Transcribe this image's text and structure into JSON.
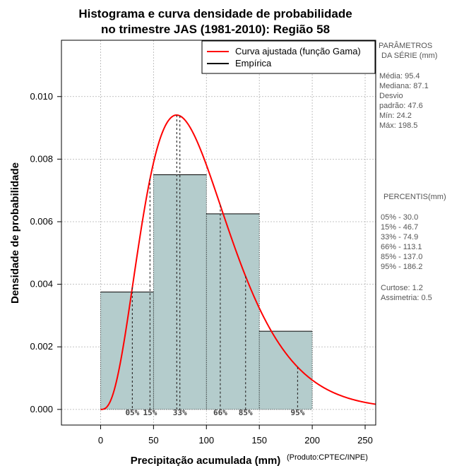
{
  "chart_data": {
    "type": "histogram",
    "title_line1": "Histograma e curva densidade de probabilidade",
    "title_line2": "no trimestre JAS (1981-2010): Região 58",
    "xlabel": "Precipitação acumulada (mm)",
    "ylabel": "Densidade de probabilidade",
    "credit": "(Produto:CPTEC/INPE)",
    "xlim": [
      -37,
      260
    ],
    "ylim": [
      -0.0005,
      0.0118
    ],
    "x_ticks": [
      0,
      50,
      100,
      150,
      200,
      250
    ],
    "y_ticks": [
      0.0,
      0.002,
      0.004,
      0.006,
      0.008,
      0.01
    ],
    "x_tick_labels": [
      "0",
      "50",
      "100",
      "150",
      "200",
      "250"
    ],
    "y_tick_labels": [
      "0.000",
      "0.002",
      "0.004",
      "0.006",
      "0.008",
      "0.010"
    ],
    "grid": true,
    "bins": [
      {
        "start": 0,
        "end": 50,
        "density": 0.00375
      },
      {
        "start": 50,
        "end": 100,
        "density": 0.0075
      },
      {
        "start": 100,
        "end": 150,
        "density": 0.00625
      },
      {
        "start": 150,
        "end": 200,
        "density": 0.0025
      }
    ],
    "gamma_fit": {
      "shape": 4.03,
      "scale": 23.7
    },
    "legend": {
      "position": "top-right",
      "entries": [
        {
          "label": "Curva ajustada (função Gama)",
          "color": "#ff0000"
        },
        {
          "label": "Empírica",
          "color": "#000000"
        }
      ]
    },
    "percentile_markers": [
      {
        "label": "05%",
        "x": 30.0
      },
      {
        "label": "15%",
        "x": 46.7
      },
      {
        "label": "33%",
        "x": 74.9
      },
      {
        "label": "66%",
        "x": 113.1
      },
      {
        "label": "85%",
        "x": 137.0
      },
      {
        "label": "95%",
        "x": 186.2
      }
    ],
    "mode_x": 72
  },
  "parameters": {
    "heading1": "PARÂMETROS",
    "heading2": "DA SÉRIE (mm)",
    "lines": [
      "Média:  95.4",
      "Mediana:  87.1",
      "Desvio",
      "padrão:  47.6",
      "Mín:  24.2",
      "Máx:  198.5"
    ]
  },
  "percentis": {
    "heading": "PERCENTIS(mm)",
    "lines": [
      "05% -  30.0",
      "15% -  46.7",
      "33% -  74.9",
      "66% -  113.1",
      "85% -  137.0",
      "95% -  186.2"
    ]
  },
  "shape_stats": {
    "lines": [
      "Curtose:  1.2",
      "Assimetria:  0.5"
    ]
  },
  "colors": {
    "bar_fill": "#b4cccc",
    "curve": "#ff0000",
    "grid": "#b0b0b0"
  }
}
